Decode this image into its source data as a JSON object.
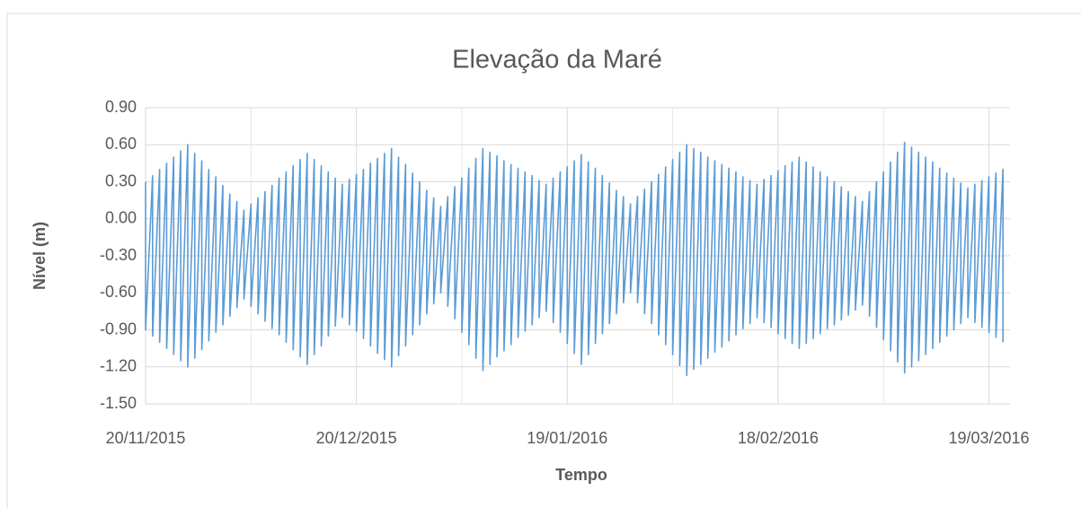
{
  "chart_data": {
    "type": "line",
    "title": "Elevação da Maré",
    "xlabel": "Tempo",
    "ylabel": "Nível (m)",
    "color": "#5b9bd5",
    "grid": true,
    "xlim": [
      "20/11/2015",
      "22/03/2016"
    ],
    "xticks": [
      "20/11/2015",
      "20/12/2015",
      "19/01/2016",
      "18/02/2016",
      "19/03/2016"
    ],
    "ylim": [
      -1.5,
      0.9
    ],
    "yticks": [
      {
        "value": -1.5,
        "label": "-1.50"
      },
      {
        "value": -1.2,
        "label": "-1.20"
      },
      {
        "value": -0.9,
        "label": "-0.90"
      },
      {
        "value": -0.6,
        "label": "-0.60"
      },
      {
        "value": -0.3,
        "label": "-0.30"
      },
      {
        "value": 0,
        "label": "0.00"
      },
      {
        "value": 0.3,
        "label": "0.30"
      },
      {
        "value": 0.6,
        "label": "0.60"
      },
      {
        "value": 0.9,
        "label": "0.90"
      }
    ],
    "x": [
      "20/11/2015",
      "20/11/2015",
      "21/11/2015",
      "21/11/2015",
      "22/11/2015",
      "22/11/2015",
      "23/11/2015",
      "23/11/2015",
      "24/11/2015",
      "24/11/2015",
      "25/11/2015",
      "25/11/2015",
      "26/11/2015",
      "26/11/2015",
      "27/11/2015",
      "27/11/2015",
      "28/11/2015",
      "28/11/2015",
      "29/11/2015",
      "29/11/2015",
      "30/11/2015",
      "30/11/2015",
      "01/12/2015",
      "01/12/2015",
      "02/12/2015",
      "02/12/2015",
      "03/12/2015",
      "03/12/2015",
      "04/12/2015",
      "04/12/2015",
      "05/12/2015",
      "05/12/2015",
      "06/12/2015",
      "06/12/2015",
      "07/12/2015",
      "07/12/2015",
      "08/12/2015",
      "08/12/2015",
      "09/12/2015",
      "09/12/2015",
      "10/12/2015",
      "10/12/2015",
      "11/12/2015",
      "11/12/2015",
      "12/12/2015",
      "12/12/2015",
      "13/12/2015",
      "13/12/2015",
      "14/12/2015",
      "14/12/2015",
      "15/12/2015",
      "15/12/2015",
      "16/12/2015",
      "16/12/2015",
      "17/12/2015",
      "17/12/2015",
      "18/12/2015",
      "18/12/2015",
      "19/12/2015",
      "19/12/2015",
      "20/12/2015",
      "20/12/2015",
      "21/12/2015",
      "21/12/2015",
      "22/12/2015",
      "22/12/2015",
      "23/12/2015",
      "23/12/2015",
      "24/12/2015",
      "24/12/2015",
      "25/12/2015",
      "25/12/2015",
      "26/12/2015",
      "26/12/2015",
      "27/12/2015",
      "27/12/2015",
      "28/12/2015",
      "28/12/2015",
      "29/12/2015",
      "29/12/2015",
      "30/12/2015",
      "30/12/2015",
      "31/12/2015",
      "31/12/2015",
      "01/01/2016",
      "01/01/2016",
      "02/01/2016",
      "02/01/2016",
      "03/01/2016",
      "03/01/2016",
      "04/01/2016",
      "04/01/2016",
      "05/01/2016",
      "05/01/2016",
      "06/01/2016",
      "06/01/2016",
      "07/01/2016",
      "07/01/2016",
      "08/01/2016",
      "08/01/2016",
      "09/01/2016",
      "09/01/2016",
      "10/01/2016",
      "10/01/2016",
      "11/01/2016",
      "11/01/2016",
      "12/01/2016",
      "12/01/2016",
      "13/01/2016",
      "13/01/2016",
      "14/01/2016",
      "14/01/2016",
      "15/01/2016",
      "15/01/2016",
      "16/01/2016",
      "16/01/2016",
      "17/01/2016",
      "17/01/2016",
      "18/01/2016",
      "18/01/2016",
      "19/01/2016",
      "19/01/2016",
      "20/01/2016",
      "20/01/2016",
      "21/01/2016",
      "21/01/2016",
      "22/01/2016",
      "22/01/2016",
      "23/01/2016",
      "23/01/2016",
      "24/01/2016",
      "24/01/2016",
      "25/01/2016",
      "25/01/2016",
      "26/01/2016",
      "26/01/2016",
      "27/01/2016",
      "27/01/2016",
      "28/01/2016",
      "28/01/2016",
      "29/01/2016",
      "29/01/2016",
      "30/01/2016",
      "30/01/2016",
      "31/01/2016",
      "31/01/2016",
      "01/02/2016",
      "01/02/2016",
      "02/02/2016",
      "02/02/2016",
      "03/02/2016",
      "03/02/2016",
      "04/02/2016",
      "04/02/2016",
      "05/02/2016",
      "05/02/2016",
      "06/02/2016",
      "06/02/2016",
      "07/02/2016",
      "07/02/2016",
      "08/02/2016",
      "08/02/2016",
      "09/02/2016",
      "09/02/2016",
      "10/02/2016",
      "10/02/2016",
      "11/02/2016",
      "11/02/2016",
      "12/02/2016",
      "12/02/2016",
      "13/02/2016",
      "13/02/2016",
      "14/02/2016",
      "14/02/2016",
      "15/02/2016",
      "15/02/2016",
      "16/02/2016",
      "16/02/2016",
      "17/02/2016",
      "17/02/2016",
      "18/02/2016",
      "18/02/2016",
      "19/02/2016",
      "19/02/2016",
      "20/02/2016",
      "20/02/2016",
      "21/02/2016",
      "21/02/2016",
      "22/02/2016",
      "22/02/2016",
      "23/02/2016",
      "23/02/2016",
      "24/02/2016",
      "24/02/2016",
      "25/02/2016",
      "25/02/2016",
      "26/02/2016",
      "26/02/2016",
      "27/02/2016",
      "27/02/2016",
      "28/02/2016",
      "28/02/2016",
      "29/02/2016",
      "29/02/2016",
      "01/03/2016",
      "01/03/2016",
      "02/03/2016",
      "02/03/2016",
      "03/03/2016",
      "03/03/2016",
      "04/03/2016",
      "04/03/2016",
      "05/03/2016",
      "05/03/2016",
      "06/03/2016",
      "06/03/2016",
      "07/03/2016",
      "07/03/2016",
      "08/03/2016",
      "08/03/2016",
      "09/03/2016",
      "09/03/2016",
      "10/03/2016",
      "10/03/2016",
      "11/03/2016",
      "11/03/2016",
      "12/03/2016",
      "12/03/2016",
      "13/03/2016",
      "13/03/2016",
      "14/03/2016",
      "14/03/2016",
      "15/03/2016",
      "15/03/2016",
      "16/03/2016",
      "16/03/2016",
      "17/03/2016",
      "17/03/2016",
      "18/03/2016",
      "18/03/2016",
      "19/03/2016",
      "19/03/2016",
      "20/03/2016",
      "20/03/2016",
      "21/03/2016",
      "21/03/2016"
    ],
    "values": [
      0.3,
      -0.9,
      0.35,
      -0.95,
      0.4,
      -1.0,
      0.45,
      -1.05,
      0.5,
      -1.1,
      0.55,
      -1.15,
      0.6,
      -1.2,
      0.53,
      -1.13,
      0.47,
      -1.06,
      0.4,
      -0.99,
      0.34,
      -0.92,
      0.27,
      -0.86,
      0.2,
      -0.79,
      0.14,
      -0.72,
      0.07,
      -0.65,
      0.12,
      -0.71,
      0.17,
      -0.77,
      0.22,
      -0.83,
      0.27,
      -0.89,
      0.33,
      -0.94,
      0.38,
      -1.0,
      0.43,
      -1.06,
      0.48,
      -1.12,
      0.53,
      -1.18,
      0.48,
      -1.1,
      0.43,
      -1.03,
      0.38,
      -0.95,
      0.33,
      -0.87,
      0.28,
      -0.8,
      0.32,
      -0.86,
      0.36,
      -0.91,
      0.4,
      -0.97,
      0.45,
      -1.03,
      0.49,
      -1.09,
      0.53,
      -1.14,
      0.57,
      -1.2,
      0.5,
      -1.11,
      0.44,
      -1.03,
      0.37,
      -0.94,
      0.3,
      -0.86,
      0.23,
      -0.77,
      0.17,
      -0.69,
      0.1,
      -0.6,
      0.18,
      -0.71,
      0.26,
      -0.81,
      0.33,
      -0.92,
      0.41,
      -1.02,
      0.49,
      -1.13,
      0.57,
      -1.23,
      0.54,
      -1.18,
      0.51,
      -1.12,
      0.47,
      -1.07,
      0.44,
      -1.02,
      0.41,
      -0.96,
      0.38,
      -0.91,
      0.35,
      -0.86,
      0.31,
      -0.8,
      0.28,
      -0.75,
      0.33,
      -0.84,
      0.38,
      -0.92,
      0.42,
      -1.01,
      0.47,
      -1.09,
      0.52,
      -1.18,
      0.46,
      -1.1,
      0.41,
      -1.01,
      0.35,
      -0.93,
      0.29,
      -0.85,
      0.23,
      -0.77,
      0.18,
      -0.68,
      0.12,
      -0.6,
      0.18,
      -0.68,
      0.24,
      -0.77,
      0.3,
      -0.85,
      0.36,
      -0.94,
      0.42,
      -1.02,
      0.48,
      -1.1,
      0.54,
      -1.19,
      0.6,
      -1.27,
      0.57,
      -1.22,
      0.54,
      -1.18,
      0.5,
      -1.13,
      0.47,
      -1.08,
      0.44,
      -1.04,
      0.41,
      -0.99,
      0.38,
      -0.94,
      0.34,
      -0.89,
      0.31,
      -0.85,
      0.28,
      -0.8,
      0.32,
      -0.84,
      0.35,
      -0.88,
      0.39,
      -0.93,
      0.43,
      -0.97,
      0.46,
      -1.01,
      0.5,
      -1.05,
      0.46,
      -1.01,
      0.42,
      -0.97,
      0.38,
      -0.93,
      0.34,
      -0.89,
      0.3,
      -0.86,
      0.26,
      -0.82,
      0.22,
      -0.78,
      0.18,
      -0.74,
      0.14,
      -0.7,
      0.22,
      -0.79,
      0.3,
      -0.88,
      0.38,
      -0.98,
      0.46,
      -1.07,
      0.54,
      -1.16,
      0.62,
      -1.25,
      0.58,
      -1.2,
      0.54,
      -1.15,
      0.5,
      -1.1,
      0.46,
      -1.05,
      0.41,
      -1.0,
      0.37,
      -0.95,
      0.33,
      -0.9,
      0.29,
      -0.85,
      0.25,
      -0.8,
      0.28,
      -0.84,
      0.31,
      -0.88,
      0.34,
      -0.92,
      0.37,
      -0.96,
      0.4,
      -1.0
    ]
  }
}
